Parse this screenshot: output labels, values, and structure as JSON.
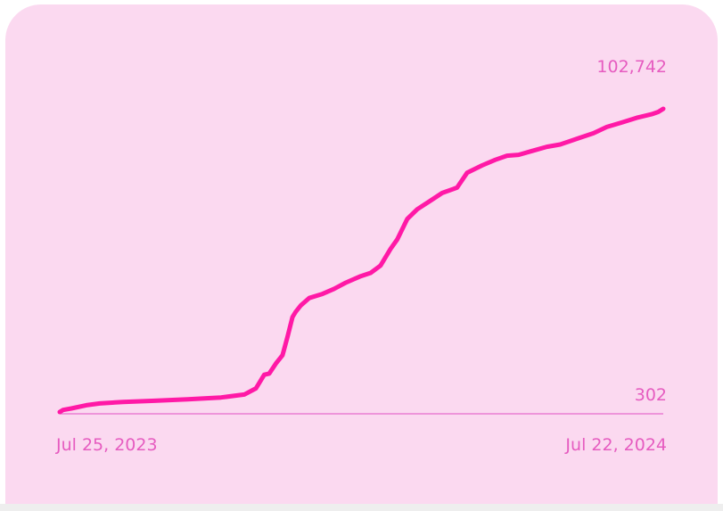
{
  "colors": {
    "card_background": "#fbd9f0",
    "line": "#ff19a6",
    "baseline": "#e66ccc",
    "label": "#e65cc0"
  },
  "chart_data": {
    "type": "line",
    "title": "",
    "xlabel": "",
    "ylabel": "",
    "x_start_label": "Jul 25, 2023",
    "x_end_label": "Jul 22, 2024",
    "y_max_label": "102,742",
    "y_min_label": "302",
    "xlim": [
      "2023-07-25",
      "2024-07-22"
    ],
    "ylim": [
      302,
      102742
    ],
    "grid": false,
    "legend": "none",
    "series": [
      {
        "x": [
          "2023-07-25",
          "2023-07-27",
          "2023-08-01",
          "2023-08-10",
          "2023-08-18",
          "2023-09-01",
          "2023-09-20",
          "2023-10-10",
          "2023-10-30",
          "2023-11-13",
          "2023-11-20",
          "2023-11-25",
          "2023-11-28",
          "2023-12-02",
          "2023-12-06",
          "2023-12-09",
          "2023-12-12",
          "2023-12-14",
          "2023-12-17",
          "2023-12-22",
          "2023-12-30",
          "2024-01-06",
          "2024-01-13",
          "2024-01-22",
          "2024-01-28",
          "2024-02-03",
          "2024-02-09",
          "2024-02-13",
          "2024-02-19",
          "2024-02-25",
          "2024-03-04",
          "2024-03-11",
          "2024-03-20",
          "2024-03-26",
          "2024-04-04",
          "2024-04-12",
          "2024-04-19",
          "2024-04-26",
          "2024-05-04",
          "2024-05-13",
          "2024-05-21",
          "2024-06-01",
          "2024-06-10",
          "2024-06-18",
          "2024-06-27",
          "2024-07-06",
          "2024-07-15",
          "2024-07-19",
          "2024-07-22"
        ],
        "y": [
          302,
          1000,
          1500,
          2600,
          3200,
          3700,
          4100,
          4600,
          5200,
          6200,
          8300,
          12900,
          13300,
          16700,
          19500,
          25700,
          32400,
          34200,
          36300,
          38800,
          40200,
          41900,
          44000,
          46200,
          47300,
          49800,
          55400,
          58600,
          65500,
          68800,
          71700,
          74300,
          76100,
          81100,
          83600,
          85500,
          86900,
          87200,
          88500,
          89900,
          90700,
          92800,
          94500,
          96600,
          98100,
          99700,
          100900,
          101700,
          102742
        ]
      }
    ]
  }
}
